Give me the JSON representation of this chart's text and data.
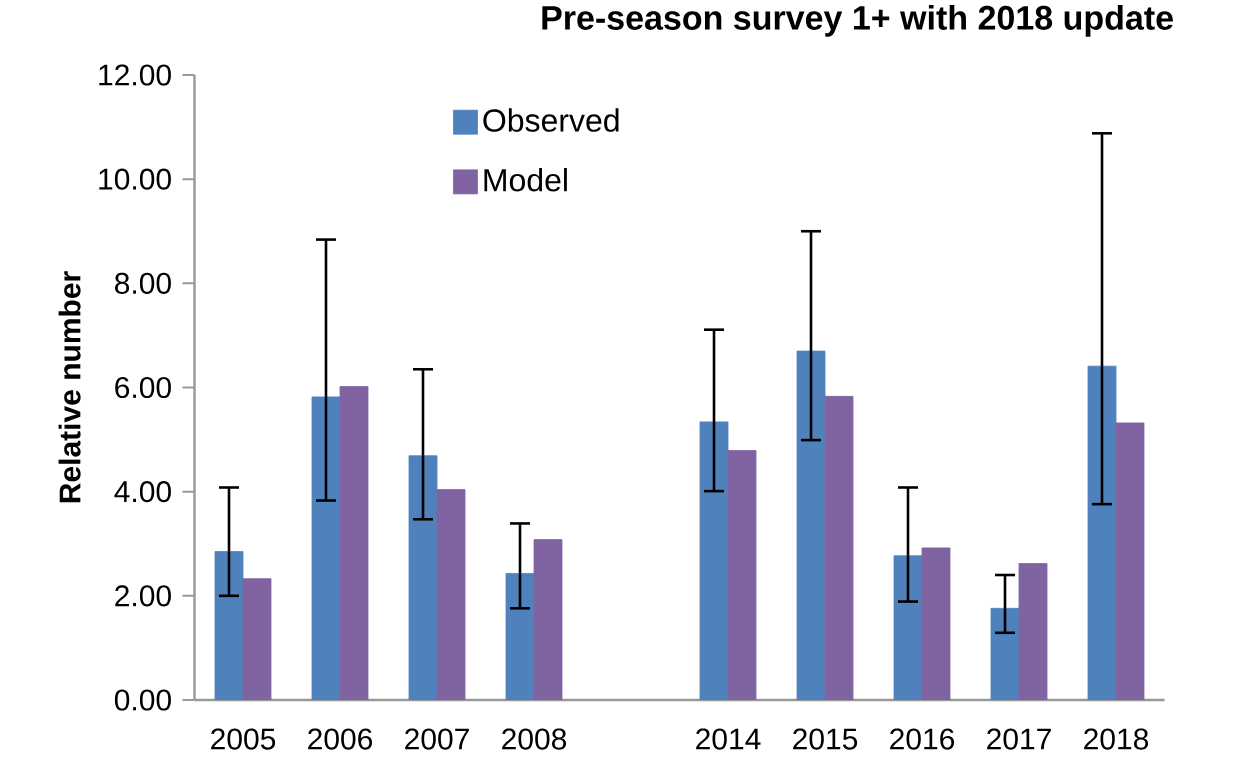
{
  "chart_data": {
    "type": "bar",
    "title": "Pre-season survey 1+ with 2018 update",
    "ylabel": "Relative number",
    "categories": [
      "2005",
      "2006",
      "2007",
      "2008",
      null,
      "2014",
      "2015",
      "2016",
      "2017",
      "2018"
    ],
    "series": [
      {
        "name": "Observed",
        "color": "#4f81bd",
        "values": [
          2.85,
          5.82,
          4.69,
          2.43,
          null,
          5.34,
          6.7,
          2.77,
          1.76,
          6.41
        ],
        "errors": [
          [
            2.0,
            4.08
          ],
          [
            3.83,
            8.84
          ],
          [
            3.47,
            6.35
          ],
          [
            1.76,
            3.39
          ],
          null,
          [
            4.01,
            7.11
          ],
          [
            4.99,
            9.0
          ],
          [
            1.89,
            4.08
          ],
          [
            1.29,
            2.4
          ],
          [
            3.76,
            10.88
          ]
        ]
      },
      {
        "name": "Model",
        "color": "#8064a2",
        "values": [
          2.33,
          6.02,
          4.04,
          3.08,
          null,
          4.79,
          5.83,
          2.92,
          2.62,
          5.32
        ]
      }
    ],
    "ylim": [
      0,
      12
    ],
    "yticks": [
      {
        "value": 0,
        "label": "0.00"
      },
      {
        "value": 2,
        "label": "2.00"
      },
      {
        "value": 4,
        "label": "4.00"
      },
      {
        "value": 6,
        "label": "6.00"
      },
      {
        "value": 8,
        "label": "8.00"
      },
      {
        "value": 10,
        "label": "10.00"
      },
      {
        "value": 12,
        "label": "12.00"
      }
    ],
    "legend": "top",
    "grid": false
  }
}
